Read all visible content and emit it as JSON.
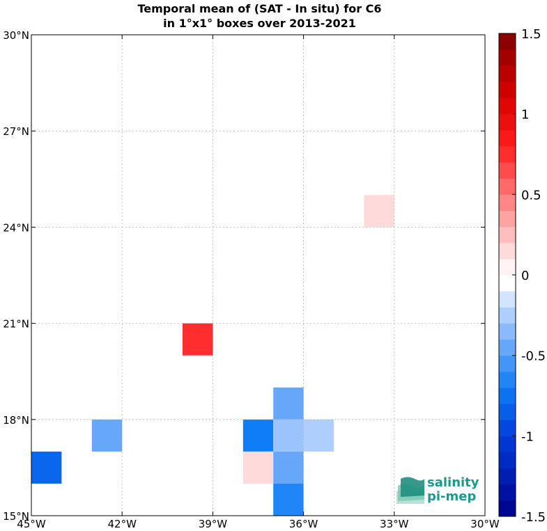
{
  "title_line1": "Temporal mean of (SAT - In situ) for C6",
  "title_line2": "in 1°x1° boxes over 2013-2021",
  "logo": {
    "line1": "salinity",
    "line2": "pi-mep",
    "icon": "layered-waves-logo"
  },
  "chart_data": {
    "type": "heatmap",
    "x_ticks": [
      "45°W",
      "42°W",
      "39°W",
      "36°W",
      "33°W",
      "30°W"
    ],
    "y_ticks": [
      "15°N",
      "18°N",
      "21°N",
      "24°N",
      "27°N",
      "30°N"
    ],
    "xlim": [
      -45,
      -30
    ],
    "ylim": [
      15,
      30
    ],
    "grid": true,
    "cells": [
      {
        "lon": -45,
        "lat": 16,
        "value": -0.8
      },
      {
        "lon": -43,
        "lat": 17,
        "value": -0.45
      },
      {
        "lon": -40,
        "lat": 20,
        "value": 0.75
      },
      {
        "lon": -38,
        "lat": 17,
        "value": -0.7
      },
      {
        "lon": -38,
        "lat": 16,
        "value": 0.15
      },
      {
        "lon": -37,
        "lat": 18,
        "value": -0.45
      },
      {
        "lon": -37,
        "lat": 17,
        "value": -0.3
      },
      {
        "lon": -37,
        "lat": 16,
        "value": -0.45
      },
      {
        "lon": -37,
        "lat": 15,
        "value": -0.65
      },
      {
        "lon": -36,
        "lat": 17,
        "value": -0.25
      },
      {
        "lon": -34,
        "lat": 24,
        "value": 0.15
      }
    ],
    "colorbar": {
      "min": -1.5,
      "max": 1.5,
      "levels": 30,
      "tick_values": [
        1.5,
        1,
        0.5,
        0,
        -0.5,
        -1,
        -1.5
      ],
      "tick_labels": [
        "1.5",
        "1",
        "0.5",
        "0",
        "-0.5",
        "-1",
        "-1.5"
      ]
    }
  }
}
